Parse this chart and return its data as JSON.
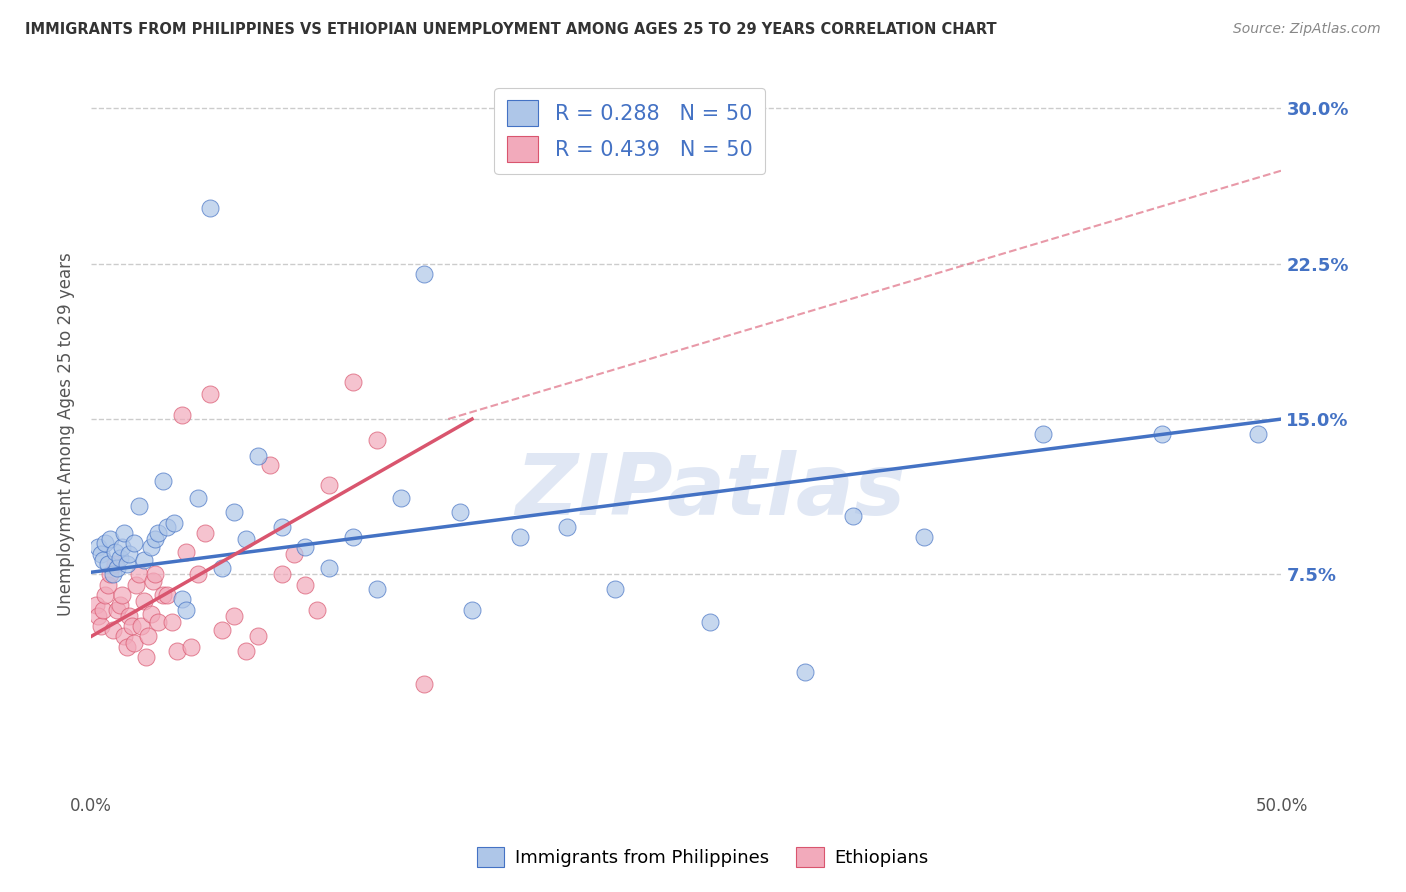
{
  "title": "IMMIGRANTS FROM PHILIPPINES VS ETHIOPIAN UNEMPLOYMENT AMONG AGES 25 TO 29 YEARS CORRELATION CHART",
  "source": "Source: ZipAtlas.com",
  "ylabel": "Unemployment Among Ages 25 to 29 years",
  "xlim": [
    0.0,
    0.5
  ],
  "ylim": [
    -0.03,
    0.315
  ],
  "x_ticks": [
    0.0,
    0.1,
    0.2,
    0.3,
    0.4,
    0.5
  ],
  "x_tick_labels": [
    "0.0%",
    "",
    "",
    "",
    "",
    "50.0%"
  ],
  "y_ticks": [
    0.075,
    0.15,
    0.225,
    0.3
  ],
  "y_tick_labels": [
    "7.5%",
    "15.0%",
    "22.5%",
    "30.0%"
  ],
  "legend_r1": "R = 0.288   N = 50",
  "legend_r2": "R = 0.439   N = 50",
  "legend_label_blue": "Immigrants from Philippines",
  "legend_label_pink": "Ethiopians",
  "watermark": "ZIPatlas",
  "blue_scatter_x": [
    0.003,
    0.004,
    0.005,
    0.006,
    0.007,
    0.008,
    0.009,
    0.01,
    0.011,
    0.012,
    0.013,
    0.014,
    0.015,
    0.016,
    0.018,
    0.02,
    0.022,
    0.025,
    0.027,
    0.028,
    0.03,
    0.032,
    0.035,
    0.038,
    0.04,
    0.045,
    0.05,
    0.055,
    0.06,
    0.065,
    0.07,
    0.08,
    0.09,
    0.1,
    0.11,
    0.12,
    0.13,
    0.14,
    0.155,
    0.16,
    0.18,
    0.2,
    0.22,
    0.26,
    0.3,
    0.32,
    0.35,
    0.4,
    0.45,
    0.49
  ],
  "blue_scatter_y": [
    0.088,
    0.085,
    0.082,
    0.09,
    0.08,
    0.092,
    0.075,
    0.086,
    0.078,
    0.083,
    0.088,
    0.095,
    0.08,
    0.085,
    0.09,
    0.108,
    0.082,
    0.088,
    0.092,
    0.095,
    0.12,
    0.098,
    0.1,
    0.063,
    0.058,
    0.112,
    0.252,
    0.078,
    0.105,
    0.092,
    0.132,
    0.098,
    0.088,
    0.078,
    0.093,
    0.068,
    0.112,
    0.22,
    0.105,
    0.058,
    0.093,
    0.098,
    0.068,
    0.052,
    0.028,
    0.103,
    0.093,
    0.143,
    0.143,
    0.143
  ],
  "pink_scatter_x": [
    0.002,
    0.003,
    0.004,
    0.005,
    0.006,
    0.007,
    0.008,
    0.009,
    0.01,
    0.011,
    0.012,
    0.013,
    0.014,
    0.015,
    0.016,
    0.017,
    0.018,
    0.019,
    0.02,
    0.021,
    0.022,
    0.023,
    0.024,
    0.025,
    0.026,
    0.027,
    0.028,
    0.03,
    0.032,
    0.034,
    0.036,
    0.038,
    0.04,
    0.042,
    0.045,
    0.048,
    0.05,
    0.055,
    0.06,
    0.065,
    0.07,
    0.075,
    0.08,
    0.085,
    0.09,
    0.095,
    0.1,
    0.11,
    0.12,
    0.14
  ],
  "pink_scatter_y": [
    0.06,
    0.055,
    0.05,
    0.058,
    0.065,
    0.07,
    0.075,
    0.048,
    0.08,
    0.058,
    0.06,
    0.065,
    0.045,
    0.04,
    0.055,
    0.05,
    0.042,
    0.07,
    0.075,
    0.05,
    0.062,
    0.035,
    0.045,
    0.056,
    0.072,
    0.075,
    0.052,
    0.065,
    0.065,
    0.052,
    0.038,
    0.152,
    0.086,
    0.04,
    0.075,
    0.095,
    0.162,
    0.048,
    0.055,
    0.038,
    0.045,
    0.128,
    0.075,
    0.085,
    0.07,
    0.058,
    0.118,
    0.168,
    0.14,
    0.022
  ],
  "blue_line_x": [
    0.0,
    0.5
  ],
  "blue_line_y": [
    0.076,
    0.15
  ],
  "pink_line_x": [
    0.0,
    0.16
  ],
  "pink_line_y": [
    0.045,
    0.15
  ],
  "dashed_line_x": [
    0.15,
    0.5
  ],
  "dashed_line_y": [
    0.15,
    0.27
  ],
  "blue_color": "#4472c4",
  "blue_scatter_color": "#aec6e8",
  "pink_color": "#d9556e",
  "pink_scatter_color": "#f2aabb",
  "dashed_color": "#d9556e",
  "bg_color": "#ffffff",
  "grid_color": "#cccccc",
  "title_color": "#333333",
  "ylabel_color": "#555555",
  "right_tick_color": "#4472c4",
  "source_color": "#888888"
}
